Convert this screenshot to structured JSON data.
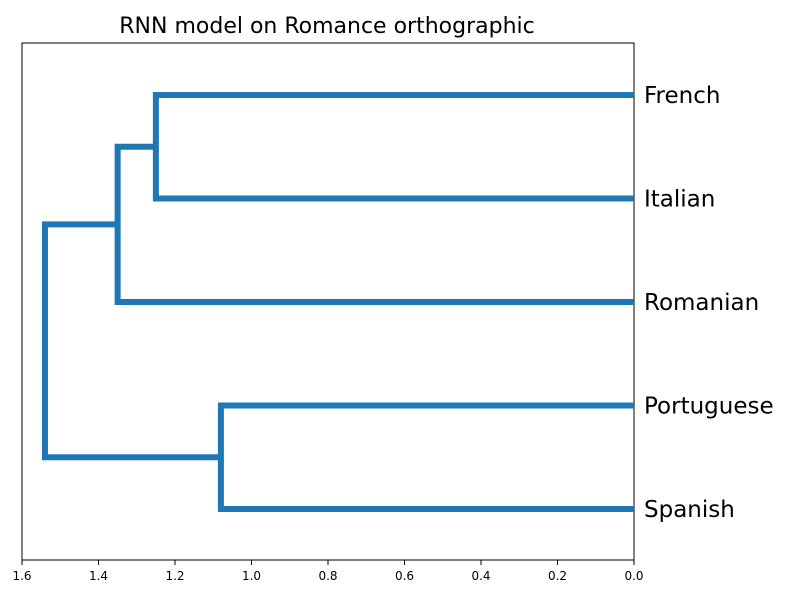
{
  "chart_data": {
    "type": "dendrogram",
    "title": "RNN model on Romance orthographic",
    "orientation": "left",
    "color": "#1f77b4",
    "xlim": [
      1.6,
      0.0
    ],
    "xticks": [
      "1.6",
      "1.4",
      "1.2",
      "1.0",
      "0.8",
      "0.6",
      "0.4",
      "0.2",
      "0.0"
    ],
    "leaves": [
      "French",
      "Italian",
      "Romanian",
      "Portuguese",
      "Spanish"
    ],
    "merges": [
      {
        "children": [
          "French",
          "Italian"
        ],
        "height": 1.25
      },
      {
        "children": [
          "French+Italian",
          "Romanian"
        ],
        "height": 1.35
      },
      {
        "children": [
          "Portuguese",
          "Spanish"
        ],
        "height": 1.08
      },
      {
        "children": [
          "French+Italian+Romanian",
          "Portuguese+Spanish"
        ],
        "height": 1.54
      }
    ],
    "grid": false
  }
}
